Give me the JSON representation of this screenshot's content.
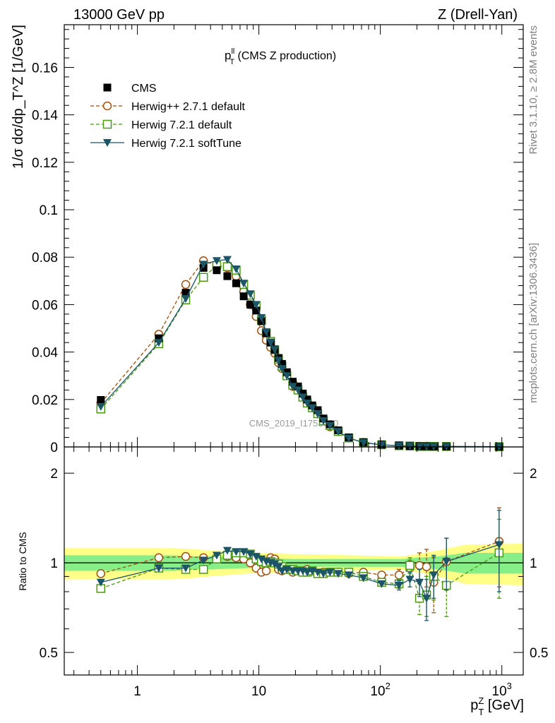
{
  "header": {
    "left": "13000 GeV pp",
    "right": "Z (Drell-Yan)"
  },
  "side_text": {
    "rivet": "Rivet 3.1.10, ≥ 2.8M events",
    "mcplots": "mcplots.cern.ch [arXiv:1306.3436]"
  },
  "watermark": "CMS_2019_I1753680",
  "colors": {
    "cms": "#000000",
    "herwigpp": "#a34f0d",
    "h721": "#4a9a12",
    "soft": "#1b5566",
    "band_outer": "#ffff88",
    "band_inner": "#88ee88"
  },
  "chart_data": [
    {
      "type": "scatter",
      "title": "p_T^ll (CMS Z production)",
      "title_main": "p",
      "title_sup": "ll",
      "title_sub": "T",
      "title_rest": " (CMS Z production)",
      "ylabel": "1/σ dσ/dp_T^Z [1/GeV]",
      "ylim": [
        0,
        0.178
      ],
      "yticks": [
        0,
        0.02,
        0.04,
        0.06,
        0.08,
        0.1,
        0.12,
        0.14,
        0.16
      ],
      "yticklabels": [
        "0",
        "0.02",
        "0.04",
        "0.06",
        "0.08",
        "0.1",
        "0.12",
        "0.14",
        "0.16"
      ],
      "xscale": "log",
      "xlim": [
        0.25,
        1500
      ],
      "x": [
        0.5,
        1.5,
        2.5,
        3.5,
        4.5,
        5.5,
        6.5,
        7.5,
        8.5,
        9.5,
        10.5,
        11.5,
        12.5,
        13.5,
        14.5,
        15.5,
        17,
        19,
        21,
        23,
        25,
        27.5,
        30.5,
        34,
        38.5,
        45,
        55,
        72.5,
        102.5,
        142.5,
        175,
        210,
        240,
        275,
        350,
        950
      ],
      "series": [
        {
          "name": "CMS",
          "key": "cms",
          "marker": "square-filled",
          "values": [
            0.0198,
            0.0458,
            0.065,
            0.0755,
            0.0745,
            0.072,
            0.069,
            0.0635,
            0.06,
            0.0575,
            0.053,
            0.048,
            0.044,
            0.041,
            0.0375,
            0.035,
            0.0315,
            0.0275,
            0.0255,
            0.0225,
            0.02,
            0.0175,
            0.0155,
            0.012,
            0.0095,
            0.007,
            0.004,
            0.002,
            0.001,
            0.0006,
            0.0004,
            0.0003,
            0.0003,
            0.0002,
            0.0002,
            0.0001
          ]
        },
        {
          "name": "Herwig++ 2.7.1 default",
          "key": "herwigpp",
          "marker": "circle-open",
          "dash": true,
          "values": [
            0.0185,
            0.0475,
            0.0685,
            0.0785,
            0.0765,
            0.0755,
            0.072,
            0.0655,
            0.06,
            0.055,
            0.049,
            0.045,
            0.042,
            0.0395,
            0.0355,
            0.033,
            0.03,
            0.0255,
            0.024,
            0.021,
            0.019,
            0.0165,
            0.014,
            0.011,
            0.0085,
            0.0065,
            0.0038,
            0.0019,
            0.0009,
            0.0005,
            0.0004,
            0.0003,
            0.0003,
            0.0002,
            0.0002,
            0.0001
          ]
        },
        {
          "name": "Herwig 7.2.1 default",
          "key": "h721",
          "marker": "square-open",
          "dash": true,
          "values": [
            0.016,
            0.0435,
            0.062,
            0.0715,
            0.0765,
            0.076,
            0.0745,
            0.0685,
            0.064,
            0.0595,
            0.0535,
            0.048,
            0.0445,
            0.041,
            0.037,
            0.034,
            0.03,
            0.026,
            0.024,
            0.021,
            0.0185,
            0.0165,
            0.014,
            0.011,
            0.009,
            0.0065,
            0.0038,
            0.0018,
            0.0009,
            0.0005,
            0.0004,
            0.0002,
            0.0002,
            0.0002,
            0.0002,
            0.0001
          ]
        },
        {
          "name": "Herwig 7.2.1 softTune",
          "key": "soft",
          "marker": "triangle-down-filled",
          "dash": false,
          "values": [
            0.017,
            0.044,
            0.0625,
            0.077,
            0.0785,
            0.079,
            0.075,
            0.069,
            0.0645,
            0.06,
            0.0545,
            0.0485,
            0.044,
            0.041,
            0.0365,
            0.033,
            0.03,
            0.0255,
            0.024,
            0.021,
            0.0185,
            0.0165,
            0.014,
            0.011,
            0.009,
            0.0065,
            0.0037,
            0.0018,
            0.0009,
            0.0005,
            0.0004,
            0.0002,
            0.0002,
            0.0002,
            0.0002,
            0.0001
          ]
        }
      ]
    },
    {
      "type": "scatter",
      "ylabel": "Ratio to CMS",
      "xlabel": "p_T^Z [GeV]",
      "xlabel_main": "p",
      "xlabel_sup": "Z",
      "xlabel_sub": "T",
      "xlabel_rest": " [GeV]",
      "yscale": "log",
      "ylim": [
        0.42,
        2.45
      ],
      "yticks": [
        0.5,
        1,
        2
      ],
      "yticklabels": [
        "0.5",
        "1",
        "2"
      ],
      "xscale": "log",
      "xlim": [
        0.25,
        1500
      ],
      "xticks": [
        1,
        10,
        100,
        1000
      ],
      "xticklabels": [
        {
          "base": "1",
          "exp": ""
        },
        {
          "base": "10",
          "exp": ""
        },
        {
          "base": "10",
          "exp": "2"
        },
        {
          "base": "10",
          "exp": "3"
        }
      ],
      "band": {
        "x": [
          0.25,
          2,
          3,
          4,
          8,
          20,
          60,
          150,
          200,
          300,
          500,
          1500
        ],
        "outer": [
          0.12,
          0.12,
          0.11,
          0.1,
          0.08,
          0.07,
          0.06,
          0.05,
          0.07,
          0.1,
          0.15,
          0.16
        ],
        "inner": [
          0.06,
          0.06,
          0.05,
          0.05,
          0.04,
          0.03,
          0.03,
          0.03,
          0.04,
          0.05,
          0.08,
          0.08
        ]
      },
      "x": [
        0.5,
        1.5,
        2.5,
        3.5,
        4.5,
        5.5,
        6.5,
        7.5,
        8.5,
        9.5,
        10.5,
        11.5,
        12.5,
        13.5,
        14.5,
        15.5,
        17,
        19,
        21,
        23,
        25,
        27.5,
        30.5,
        34,
        38.5,
        45,
        55,
        72.5,
        102.5,
        142.5,
        175,
        210,
        240,
        275,
        350,
        950
      ],
      "series": [
        {
          "name": "Herwig++ 2.7.1 default",
          "key": "herwigpp",
          "marker": "circle-open",
          "dash": true,
          "values": [
            0.92,
            1.04,
            1.05,
            1.04,
            1.03,
            1.05,
            1.04,
            1.03,
            1.0,
            0.96,
            0.93,
            0.94,
            1.04,
            1.03,
            0.95,
            0.94,
            0.95,
            0.93,
            0.94,
            0.94,
            0.95,
            0.94,
            0.92,
            0.93,
            0.93,
            0.93,
            0.92,
            0.93,
            0.91,
            0.91,
            0.96,
            0.98,
            0.97,
            0.86,
            1.01,
            1.18
          ],
          "err": [
            0,
            0,
            0,
            0,
            0,
            0,
            0,
            0,
            0,
            0,
            0,
            0,
            0,
            0,
            0,
            0,
            0,
            0,
            0,
            0,
            0,
            0,
            0,
            0,
            0,
            0,
            0,
            0,
            0,
            0.04,
            0.06,
            0.1,
            0.14,
            0.18,
            0.2,
            0.35
          ]
        },
        {
          "name": "Herwig 7.2.1 default",
          "key": "h721",
          "marker": "square-open",
          "dash": true,
          "values": [
            0.82,
            0.96,
            0.95,
            0.95,
            1.03,
            1.06,
            1.08,
            1.08,
            1.07,
            1.03,
            1.01,
            1.0,
            1.01,
            1.0,
            0.99,
            0.97,
            0.95,
            0.95,
            0.94,
            0.93,
            0.93,
            0.94,
            0.92,
            0.92,
            0.93,
            0.93,
            0.93,
            0.9,
            0.86,
            0.85,
            0.98,
            0.76,
            0.78,
            0.9,
            0.84,
            1.08
          ],
          "err": [
            0,
            0,
            0,
            0,
            0,
            0,
            0,
            0,
            0,
            0,
            0,
            0,
            0,
            0,
            0,
            0,
            0,
            0,
            0,
            0,
            0,
            0,
            0,
            0,
            0,
            0,
            0,
            0,
            0,
            0.03,
            0.06,
            0.09,
            0.12,
            0.15,
            0.18,
            0.32
          ]
        },
        {
          "name": "Herwig 7.2.1 softTune",
          "key": "soft",
          "marker": "triangle-down-filled",
          "dash": false,
          "values": [
            0.86,
            0.96,
            0.96,
            1.02,
            1.06,
            1.1,
            1.09,
            1.09,
            1.07,
            1.05,
            1.03,
            1.01,
            1.0,
            0.99,
            0.97,
            0.94,
            0.95,
            0.94,
            0.94,
            0.94,
            0.93,
            0.94,
            0.93,
            0.92,
            0.93,
            0.92,
            0.91,
            0.89,
            0.85,
            0.84,
            0.88,
            0.86,
            0.76,
            0.91,
            1.01,
            1.15
          ],
          "err": [
            0,
            0,
            0,
            0,
            0,
            0,
            0,
            0,
            0,
            0,
            0,
            0,
            0,
            0,
            0,
            0,
            0,
            0,
            0,
            0,
            0,
            0,
            0,
            0,
            0,
            0,
            0,
            0,
            0,
            0.03,
            0.05,
            0.09,
            0.12,
            0.15,
            0.2,
            0.35
          ]
        }
      ]
    }
  ]
}
